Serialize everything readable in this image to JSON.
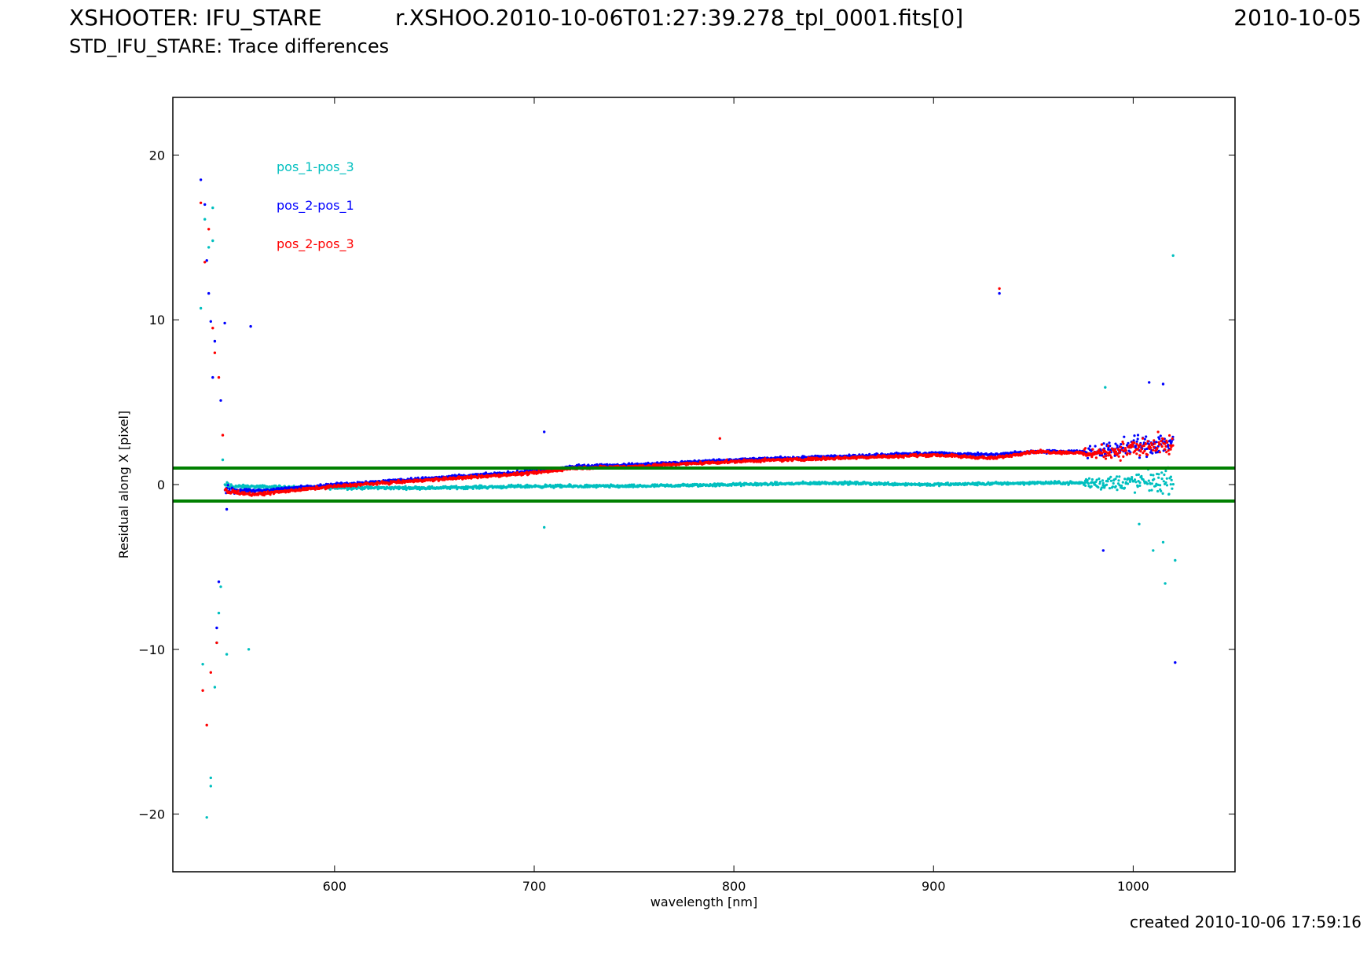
{
  "header": {
    "left": "XSHOOTER: IFU_STARE",
    "center": "r.XSHOO.2010-10-06T01:27:39.278_tpl_0001.fits[0]",
    "right": "2010-10-05",
    "subtitle": "STD_IFU_STARE: Trace differences"
  },
  "footer": {
    "created": "created 2010-10-06 17:59:16"
  },
  "chart_data": {
    "type": "scatter",
    "xlabel": "wavelength [nm]",
    "ylabel": "Residual along X [pixel]",
    "xlim": [
      519,
      1051
    ],
    "ylim": [
      -23.5,
      23.5
    ],
    "xticks": [
      600,
      700,
      800,
      900,
      1000
    ],
    "yticks": [
      -20,
      -10,
      0,
      10,
      20
    ],
    "grid": false,
    "legend_position": "top-left",
    "hlines": [
      {
        "y": 1,
        "color": "#008000"
      },
      {
        "y": -1,
        "color": "#008000"
      }
    ],
    "series": [
      {
        "name": "pos_1-pos_3",
        "color": "#00bfbf",
        "trend": [
          [
            545,
            -0.1
          ],
          [
            600,
            -0.2
          ],
          [
            650,
            -0.2
          ],
          [
            700,
            -0.1
          ],
          [
            750,
            -0.1
          ],
          [
            800,
            0.0
          ],
          [
            850,
            0.1
          ],
          [
            900,
            0.0
          ],
          [
            950,
            0.1
          ],
          [
            990,
            0.1
          ],
          [
            1020,
            0.2
          ]
        ],
        "outliers": [
          [
            533,
            10.7
          ],
          [
            534,
            -10.9
          ],
          [
            535,
            16.1
          ],
          [
            536,
            -20.2
          ],
          [
            537,
            14.4
          ],
          [
            538,
            -18.3
          ],
          [
            538,
            -17.8
          ],
          [
            539,
            14.8
          ],
          [
            539,
            16.8
          ],
          [
            540,
            -12.3
          ],
          [
            541,
            -9.6
          ],
          [
            542,
            -7.8
          ],
          [
            543,
            -6.2
          ],
          [
            544,
            1.5
          ],
          [
            546,
            -10.3
          ],
          [
            557,
            -10.0
          ],
          [
            705,
            -2.6
          ],
          [
            986,
            5.9
          ],
          [
            1003,
            -2.4
          ],
          [
            1010,
            -4.0
          ],
          [
            1015,
            -3.5
          ],
          [
            1016,
            -6.0
          ],
          [
            1020,
            13.9
          ],
          [
            1021,
            -4.6
          ]
        ]
      },
      {
        "name": "pos_2-pos_1",
        "color": "#0000ff",
        "trend": [
          [
            545,
            -0.3
          ],
          [
            560,
            -0.4
          ],
          [
            600,
            0.0
          ],
          [
            650,
            0.4
          ],
          [
            700,
            0.8
          ],
          [
            720,
            1.1
          ],
          [
            750,
            1.2
          ],
          [
            800,
            1.5
          ],
          [
            850,
            1.7
          ],
          [
            900,
            1.9
          ],
          [
            930,
            1.8
          ],
          [
            950,
            2.0
          ],
          [
            980,
            2.0
          ],
          [
            1020,
            2.6
          ]
        ],
        "outliers": [
          [
            533,
            18.5
          ],
          [
            535,
            17.0
          ],
          [
            536,
            13.6
          ],
          [
            537,
            11.6
          ],
          [
            538,
            9.9
          ],
          [
            539,
            6.5
          ],
          [
            540,
            8.7
          ],
          [
            541,
            -8.7
          ],
          [
            542,
            -5.9
          ],
          [
            543,
            5.1
          ],
          [
            545,
            9.8
          ],
          [
            546,
            -1.5
          ],
          [
            558,
            9.6
          ],
          [
            705,
            3.2
          ],
          [
            933,
            11.6
          ],
          [
            985,
            -4.0
          ],
          [
            1008,
            6.2
          ],
          [
            1015,
            6.1
          ],
          [
            1021,
            -10.8
          ]
        ]
      },
      {
        "name": "pos_2-pos_3",
        "color": "#ff0000",
        "trend": [
          [
            545,
            -0.4
          ],
          [
            560,
            -0.6
          ],
          [
            600,
            -0.1
          ],
          [
            650,
            0.3
          ],
          [
            700,
            0.7
          ],
          [
            720,
            1.0
          ],
          [
            750,
            1.1
          ],
          [
            800,
            1.4
          ],
          [
            850,
            1.6
          ],
          [
            900,
            1.8
          ],
          [
            930,
            1.6
          ],
          [
            950,
            2.0
          ],
          [
            980,
            1.9
          ],
          [
            1020,
            2.4
          ]
        ],
        "outliers": [
          [
            533,
            17.1
          ],
          [
            534,
            -12.5
          ],
          [
            535,
            13.5
          ],
          [
            536,
            -14.6
          ],
          [
            537,
            15.5
          ],
          [
            538,
            -11.4
          ],
          [
            539,
            9.5
          ],
          [
            540,
            8.0
          ],
          [
            541,
            -9.6
          ],
          [
            542,
            6.5
          ],
          [
            544,
            3.0
          ],
          [
            793,
            2.8
          ],
          [
            933,
            11.9
          ]
        ]
      }
    ]
  }
}
